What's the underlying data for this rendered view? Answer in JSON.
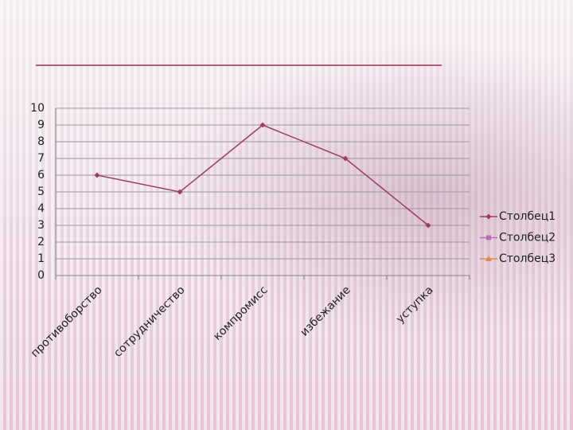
{
  "chart_data": {
    "type": "line",
    "categories": [
      "противоборство",
      "сотрудничество",
      "компромисс",
      "избежание",
      "уступка"
    ],
    "series": [
      {
        "name": "Столбец1",
        "color": "#9c3d68",
        "marker": "diamond",
        "values": [
          6,
          5,
          9,
          7,
          3
        ]
      },
      {
        "name": "Столбец2",
        "color": "#b26fb4",
        "marker": "square",
        "values": [
          null,
          null,
          null,
          null,
          null
        ]
      },
      {
        "name": "Столбец3",
        "color": "#e0894c",
        "marker": "triangle",
        "values": [
          null,
          null,
          null,
          null,
          null
        ]
      }
    ],
    "ylim": [
      0,
      10
    ],
    "yticks": [
      0,
      1,
      2,
      3,
      4,
      5,
      6,
      7,
      8,
      9,
      10
    ],
    "grid": true,
    "legend": "right"
  }
}
